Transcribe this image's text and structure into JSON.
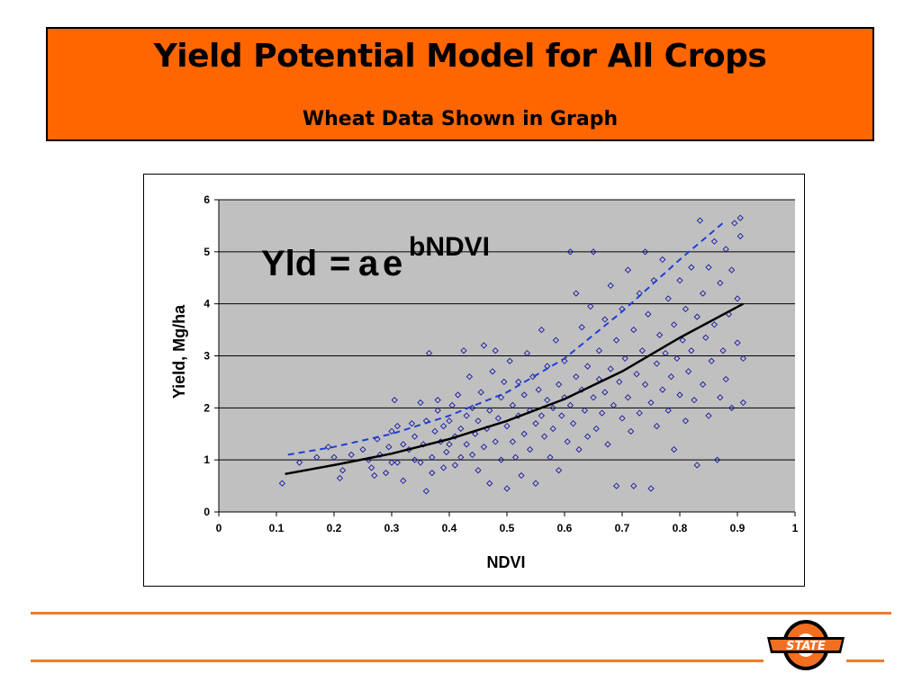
{
  "slide": {
    "title": "Yield Potential Model for All Crops",
    "subtitle": "Wheat Data Shown in Graph"
  },
  "logo": {
    "text": "STATE",
    "name": "osu-logo",
    "colors": {
      "orange": "#f26f21",
      "black": "#000000"
    }
  },
  "chart_data": {
    "type": "scatter",
    "title": "",
    "xlabel": "NDVI",
    "ylabel": "Yield, Mg/ha",
    "xlim": [
      0,
      1
    ],
    "ylim": [
      0,
      6
    ],
    "xticks": [
      "0",
      "0.1",
      "0.2",
      "0.3",
      "0.4",
      "0.5",
      "0.6",
      "0.7",
      "0.8",
      "0.9",
      "1"
    ],
    "yticks": [
      "0",
      "1",
      "2",
      "3",
      "4",
      "5",
      "6"
    ],
    "grid": "horizontal",
    "background": "#c0c0c0",
    "equation": {
      "lhs": "Yld",
      "eq": "=",
      "rhs": "a",
      "base": "e",
      "exponent": "bNDVI"
    },
    "series": [
      {
        "kind": "points",
        "color": "#1a1a9c",
        "points": [
          [
            0.11,
            0.55
          ],
          [
            0.14,
            0.95
          ],
          [
            0.17,
            1.05
          ],
          [
            0.19,
            1.25
          ],
          [
            0.2,
            1.05
          ],
          [
            0.21,
            0.65
          ],
          [
            0.215,
            0.8
          ],
          [
            0.23,
            1.1
          ],
          [
            0.25,
            1.2
          ],
          [
            0.26,
            1.0
          ],
          [
            0.265,
            0.85
          ],
          [
            0.27,
            0.7
          ],
          [
            0.275,
            1.4
          ],
          [
            0.28,
            1.1
          ],
          [
            0.29,
            0.75
          ],
          [
            0.295,
            1.25
          ],
          [
            0.3,
            0.95
          ],
          [
            0.3,
            1.55
          ],
          [
            0.305,
            2.15
          ],
          [
            0.31,
            1.65
          ],
          [
            0.31,
            0.95
          ],
          [
            0.32,
            1.3
          ],
          [
            0.32,
            0.6
          ],
          [
            0.33,
            1.2
          ],
          [
            0.335,
            1.7
          ],
          [
            0.34,
            1.45
          ],
          [
            0.34,
            1.0
          ],
          [
            0.35,
            0.95
          ],
          [
            0.35,
            2.1
          ],
          [
            0.355,
            1.3
          ],
          [
            0.36,
            1.75
          ],
          [
            0.36,
            0.4
          ],
          [
            0.365,
            3.05
          ],
          [
            0.37,
            1.05
          ],
          [
            0.37,
            0.75
          ],
          [
            0.375,
            1.55
          ],
          [
            0.38,
            2.15
          ],
          [
            0.38,
            1.95
          ],
          [
            0.385,
            1.35
          ],
          [
            0.39,
            0.85
          ],
          [
            0.39,
            1.65
          ],
          [
            0.395,
            1.15
          ],
          [
            0.4,
            1.75
          ],
          [
            0.4,
            1.3
          ],
          [
            0.405,
            2.05
          ],
          [
            0.41,
            0.9
          ],
          [
            0.41,
            1.45
          ],
          [
            0.415,
            2.25
          ],
          [
            0.42,
            1.6
          ],
          [
            0.42,
            1.05
          ],
          [
            0.425,
            3.1
          ],
          [
            0.43,
            1.85
          ],
          [
            0.43,
            1.3
          ],
          [
            0.435,
            2.6
          ],
          [
            0.44,
            1.1
          ],
          [
            0.44,
            2.0
          ],
          [
            0.445,
            1.5
          ],
          [
            0.45,
            1.75
          ],
          [
            0.45,
            0.8
          ],
          [
            0.455,
            2.3
          ],
          [
            0.46,
            1.25
          ],
          [
            0.46,
            3.2
          ],
          [
            0.465,
            1.6
          ],
          [
            0.47,
            1.95
          ],
          [
            0.47,
            0.55
          ],
          [
            0.475,
            2.7
          ],
          [
            0.48,
            1.35
          ],
          [
            0.48,
            3.1
          ],
          [
            0.485,
            1.8
          ],
          [
            0.49,
            2.2
          ],
          [
            0.49,
            1.0
          ],
          [
            0.495,
            2.5
          ],
          [
            0.5,
            1.65
          ],
          [
            0.5,
            0.45
          ],
          [
            0.505,
            2.9
          ],
          [
            0.51,
            1.35
          ],
          [
            0.51,
            2.05
          ],
          [
            0.515,
            1.05
          ],
          [
            0.52,
            1.85
          ],
          [
            0.52,
            2.5
          ],
          [
            0.525,
            0.7
          ],
          [
            0.53,
            2.25
          ],
          [
            0.53,
            1.5
          ],
          [
            0.535,
            3.05
          ],
          [
            0.54,
            1.95
          ],
          [
            0.54,
            1.2
          ],
          [
            0.545,
            2.6
          ],
          [
            0.55,
            1.7
          ],
          [
            0.55,
            0.55
          ],
          [
            0.555,
            2.35
          ],
          [
            0.56,
            1.85
          ],
          [
            0.56,
            3.5
          ],
          [
            0.565,
            1.45
          ],
          [
            0.57,
            2.15
          ],
          [
            0.57,
            2.8
          ],
          [
            0.575,
            1.05
          ],
          [
            0.58,
            2.0
          ],
          [
            0.58,
            1.6
          ],
          [
            0.585,
            3.3
          ],
          [
            0.59,
            2.45
          ],
          [
            0.59,
            0.8
          ],
          [
            0.595,
            1.85
          ],
          [
            0.6,
            2.2
          ],
          [
            0.6,
            2.9
          ],
          [
            0.605,
            1.35
          ],
          [
            0.61,
            5.0
          ],
          [
            0.61,
            2.05
          ],
          [
            0.615,
            1.7
          ],
          [
            0.62,
            4.2
          ],
          [
            0.62,
            2.6
          ],
          [
            0.625,
            1.2
          ],
          [
            0.63,
            2.35
          ],
          [
            0.63,
            3.55
          ],
          [
            0.635,
            1.95
          ],
          [
            0.64,
            2.8
          ],
          [
            0.64,
            1.45
          ],
          [
            0.645,
            3.95
          ],
          [
            0.65,
            2.2
          ],
          [
            0.65,
            5.0
          ],
          [
            0.655,
            1.6
          ],
          [
            0.66,
            2.55
          ],
          [
            0.66,
            3.1
          ],
          [
            0.665,
            1.9
          ],
          [
            0.67,
            3.7
          ],
          [
            0.67,
            2.3
          ],
          [
            0.675,
            1.3
          ],
          [
            0.68,
            2.75
          ],
          [
            0.68,
            4.35
          ],
          [
            0.685,
            2.05
          ],
          [
            0.69,
            3.3
          ],
          [
            0.69,
            0.5
          ],
          [
            0.695,
            2.5
          ],
          [
            0.7,
            1.8
          ],
          [
            0.7,
            3.9
          ],
          [
            0.705,
            2.95
          ],
          [
            0.71,
            4.65
          ],
          [
            0.71,
            2.2
          ],
          [
            0.715,
            1.55
          ],
          [
            0.72,
            3.5
          ],
          [
            0.72,
            0.5
          ],
          [
            0.725,
            2.65
          ],
          [
            0.73,
            4.2
          ],
          [
            0.73,
            1.9
          ],
          [
            0.735,
            3.1
          ],
          [
            0.74,
            2.45
          ],
          [
            0.74,
            5.0
          ],
          [
            0.745,
            3.8
          ],
          [
            0.75,
            2.1
          ],
          [
            0.75,
            0.45
          ],
          [
            0.755,
            4.45
          ],
          [
            0.76,
            2.85
          ],
          [
            0.76,
            1.65
          ],
          [
            0.765,
            3.4
          ],
          [
            0.77,
            2.35
          ],
          [
            0.77,
            4.85
          ],
          [
            0.775,
            3.05
          ],
          [
            0.78,
            1.95
          ],
          [
            0.78,
            4.1
          ],
          [
            0.785,
            2.6
          ],
          [
            0.79,
            3.6
          ],
          [
            0.79,
            1.2
          ],
          [
            0.795,
            2.95
          ],
          [
            0.8,
            4.45
          ],
          [
            0.8,
            2.25
          ],
          [
            0.805,
            3.3
          ],
          [
            0.81,
            1.75
          ],
          [
            0.81,
            3.9
          ],
          [
            0.815,
            2.7
          ],
          [
            0.82,
            4.7
          ],
          [
            0.82,
            3.1
          ],
          [
            0.825,
            2.15
          ],
          [
            0.83,
            3.75
          ],
          [
            0.83,
            0.9
          ],
          [
            0.835,
            5.6
          ],
          [
            0.84,
            2.45
          ],
          [
            0.84,
            4.2
          ],
          [
            0.845,
            3.35
          ],
          [
            0.85,
            1.85
          ],
          [
            0.85,
            4.7
          ],
          [
            0.855,
            2.9
          ],
          [
            0.86,
            5.2
          ],
          [
            0.86,
            3.6
          ],
          [
            0.865,
            1.0
          ],
          [
            0.87,
            2.2
          ],
          [
            0.87,
            4.4
          ],
          [
            0.875,
            3.1
          ],
          [
            0.88,
            5.05
          ],
          [
            0.88,
            2.55
          ],
          [
            0.885,
            3.8
          ],
          [
            0.89,
            4.65
          ],
          [
            0.89,
            2.0
          ],
          [
            0.895,
            5.55
          ],
          [
            0.9,
            3.25
          ],
          [
            0.9,
            4.1
          ],
          [
            0.905,
            5.65
          ],
          [
            0.91,
            2.1
          ],
          [
            0.91,
            2.95
          ],
          [
            0.905,
            5.3
          ]
        ]
      },
      {
        "kind": "curve",
        "color": "#000000",
        "dash": false,
        "points": [
          [
            0.115,
            0.73
          ],
          [
            0.2,
            0.9
          ],
          [
            0.3,
            1.12
          ],
          [
            0.4,
            1.4
          ],
          [
            0.5,
            1.75
          ],
          [
            0.6,
            2.17
          ],
          [
            0.7,
            2.7
          ],
          [
            0.8,
            3.35
          ],
          [
            0.91,
            4.0
          ]
        ]
      },
      {
        "kind": "curve",
        "color": "#1f3fd6",
        "dash": true,
        "points": [
          [
            0.12,
            1.1
          ],
          [
            0.2,
            1.25
          ],
          [
            0.3,
            1.5
          ],
          [
            0.4,
            1.85
          ],
          [
            0.5,
            2.3
          ],
          [
            0.6,
            2.95
          ],
          [
            0.7,
            3.85
          ],
          [
            0.8,
            4.85
          ],
          [
            0.88,
            5.6
          ]
        ]
      }
    ]
  }
}
